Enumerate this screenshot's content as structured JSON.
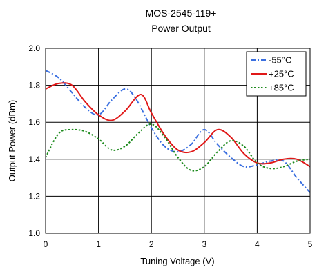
{
  "chart_data": {
    "type": "line",
    "title": "MOS-2545-119+",
    "subtitle": "Power Output",
    "xlabel": "Tuning Voltage (V)",
    "ylabel": "Output Power (dBm)",
    "xlim": [
      0,
      5
    ],
    "ylim": [
      1.0,
      2.0
    ],
    "xticks": [
      "0",
      "1",
      "2",
      "3",
      "4",
      "5"
    ],
    "yticks": [
      "1.0",
      "1.2",
      "1.4",
      "1.6",
      "1.8",
      "2.0"
    ],
    "grid": true,
    "legend_position": "top-right",
    "series": [
      {
        "name": "-55°C",
        "color": "#3a6fe0",
        "style": "dashdot",
        "x": [
          0,
          0.25,
          0.5,
          0.75,
          1.0,
          1.25,
          1.5,
          1.7,
          2.0,
          2.25,
          2.5,
          2.75,
          3.0,
          3.25,
          3.5,
          3.75,
          4.0,
          4.25,
          4.5,
          4.75,
          5.0
        ],
        "y": [
          1.88,
          1.84,
          1.76,
          1.68,
          1.64,
          1.72,
          1.78,
          1.73,
          1.57,
          1.47,
          1.44,
          1.48,
          1.56,
          1.48,
          1.41,
          1.36,
          1.37,
          1.39,
          1.39,
          1.3,
          1.22
        ]
      },
      {
        "name": "+25°C",
        "color": "#e01818",
        "style": "solid",
        "x": [
          0,
          0.25,
          0.5,
          0.75,
          1.0,
          1.25,
          1.5,
          1.8,
          2.0,
          2.25,
          2.5,
          2.75,
          3.0,
          3.25,
          3.5,
          3.75,
          4.0,
          4.25,
          4.5,
          4.75,
          5.0
        ],
        "y": [
          1.78,
          1.81,
          1.8,
          1.71,
          1.64,
          1.61,
          1.66,
          1.75,
          1.65,
          1.53,
          1.45,
          1.44,
          1.49,
          1.56,
          1.52,
          1.43,
          1.38,
          1.38,
          1.4,
          1.4,
          1.36
        ]
      },
      {
        "name": "+85°C",
        "color": "#1d8a1d",
        "style": "dotted",
        "x": [
          0,
          0.25,
          0.5,
          0.75,
          1.0,
          1.25,
          1.5,
          1.75,
          2.0,
          2.25,
          2.5,
          2.75,
          3.0,
          3.25,
          3.5,
          3.75,
          4.0,
          4.25,
          4.5,
          4.75,
          5.0
        ],
        "y": [
          1.41,
          1.54,
          1.56,
          1.55,
          1.51,
          1.45,
          1.47,
          1.54,
          1.59,
          1.52,
          1.41,
          1.34,
          1.36,
          1.44,
          1.5,
          1.47,
          1.38,
          1.35,
          1.36,
          1.39,
          1.4
        ]
      }
    ]
  }
}
